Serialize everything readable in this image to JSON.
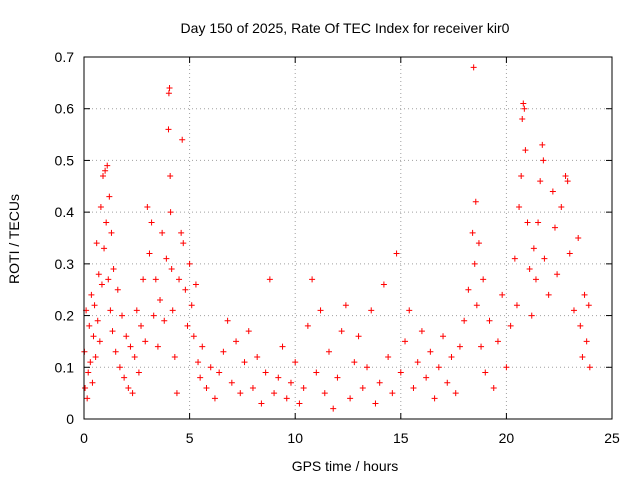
{
  "chart_data": {
    "type": "scatter",
    "title": "Day 150 of 2025, Rate Of TEC Index for receiver kir0",
    "xlabel": "GPS time / hours",
    "ylabel": "ROTI / TECUs",
    "xlim": [
      0,
      25
    ],
    "ylim": [
      0,
      0.7
    ],
    "xticks": [
      0,
      5,
      10,
      15,
      20,
      25
    ],
    "yticks": [
      0,
      0.1,
      0.2,
      0.3,
      0.4,
      0.5,
      0.6,
      0.7
    ],
    "grid": true,
    "marker": "+",
    "color": "#ff0000",
    "series": [
      {
        "name": "ROTI",
        "points": [
          [
            0.02,
            0.13
          ],
          [
            0.05,
            0.06
          ],
          [
            0.1,
            0.21
          ],
          [
            0.15,
            0.04
          ],
          [
            0.2,
            0.09
          ],
          [
            0.25,
            0.18
          ],
          [
            0.3,
            0.11
          ],
          [
            0.35,
            0.24
          ],
          [
            0.4,
            0.07
          ],
          [
            0.45,
            0.16
          ],
          [
            0.5,
            0.22
          ],
          [
            0.55,
            0.12
          ],
          [
            0.6,
            0.34
          ],
          [
            0.65,
            0.19
          ],
          [
            0.7,
            0.28
          ],
          [
            0.75,
            0.15
          ],
          [
            0.8,
            0.41
          ],
          [
            0.85,
            0.26
          ],
          [
            0.9,
            0.47
          ],
          [
            0.95,
            0.33
          ],
          [
            1.0,
            0.48
          ],
          [
            1.05,
            0.38
          ],
          [
            1.1,
            0.49
          ],
          [
            1.15,
            0.27
          ],
          [
            1.2,
            0.43
          ],
          [
            1.25,
            0.21
          ],
          [
            1.3,
            0.36
          ],
          [
            1.35,
            0.17
          ],
          [
            1.4,
            0.29
          ],
          [
            1.5,
            0.13
          ],
          [
            1.6,
            0.25
          ],
          [
            1.7,
            0.1
          ],
          [
            1.8,
            0.2
          ],
          [
            1.9,
            0.08
          ],
          [
            2.0,
            0.16
          ],
          [
            2.1,
            0.06
          ],
          [
            2.2,
            0.14
          ],
          [
            2.3,
            0.05
          ],
          [
            2.4,
            0.12
          ],
          [
            2.5,
            0.21
          ],
          [
            2.6,
            0.09
          ],
          [
            2.7,
            0.18
          ],
          [
            2.8,
            0.27
          ],
          [
            2.9,
            0.15
          ],
          [
            3.0,
            0.41
          ],
          [
            3.1,
            0.32
          ],
          [
            3.2,
            0.38
          ],
          [
            3.3,
            0.2
          ],
          [
            3.4,
            0.27
          ],
          [
            3.5,
            0.14
          ],
          [
            3.6,
            0.23
          ],
          [
            3.7,
            0.36
          ],
          [
            3.8,
            0.19
          ],
          [
            3.9,
            0.31
          ],
          [
            4.0,
            0.56
          ],
          [
            4.02,
            0.63
          ],
          [
            4.05,
            0.64
          ],
          [
            4.08,
            0.47
          ],
          [
            4.1,
            0.4
          ],
          [
            4.15,
            0.29
          ],
          [
            4.2,
            0.21
          ],
          [
            4.3,
            0.12
          ],
          [
            4.4,
            0.05
          ],
          [
            4.5,
            0.27
          ],
          [
            4.6,
            0.36
          ],
          [
            4.65,
            0.54
          ],
          [
            4.7,
            0.34
          ],
          [
            4.8,
            0.25
          ],
          [
            4.9,
            0.18
          ],
          [
            5.0,
            0.3
          ],
          [
            5.1,
            0.22
          ],
          [
            5.2,
            0.16
          ],
          [
            5.3,
            0.26
          ],
          [
            5.4,
            0.11
          ],
          [
            5.5,
            0.08
          ],
          [
            5.6,
            0.14
          ],
          [
            5.8,
            0.06
          ],
          [
            6.0,
            0.1
          ],
          [
            6.2,
            0.04
          ],
          [
            6.4,
            0.09
          ],
          [
            6.6,
            0.13
          ],
          [
            6.8,
            0.19
          ],
          [
            7.0,
            0.07
          ],
          [
            7.2,
            0.15
          ],
          [
            7.4,
            0.05
          ],
          [
            7.6,
            0.11
          ],
          [
            7.8,
            0.17
          ],
          [
            8.0,
            0.06
          ],
          [
            8.2,
            0.12
          ],
          [
            8.4,
            0.03
          ],
          [
            8.6,
            0.09
          ],
          [
            8.8,
            0.27
          ],
          [
            9.0,
            0.05
          ],
          [
            9.2,
            0.08
          ],
          [
            9.4,
            0.14
          ],
          [
            9.6,
            0.04
          ],
          [
            9.8,
            0.07
          ],
          [
            10.0,
            0.11
          ],
          [
            10.2,
            0.03
          ],
          [
            10.4,
            0.06
          ],
          [
            10.6,
            0.18
          ],
          [
            10.8,
            0.27
          ],
          [
            11.0,
            0.09
          ],
          [
            11.2,
            0.21
          ],
          [
            11.4,
            0.05
          ],
          [
            11.6,
            0.13
          ],
          [
            11.8,
            0.02
          ],
          [
            12.0,
            0.08
          ],
          [
            12.2,
            0.17
          ],
          [
            12.4,
            0.22
          ],
          [
            12.6,
            0.04
          ],
          [
            12.8,
            0.11
          ],
          [
            13.0,
            0.16
          ],
          [
            13.2,
            0.06
          ],
          [
            13.4,
            0.1
          ],
          [
            13.6,
            0.21
          ],
          [
            13.8,
            0.03
          ],
          [
            14.0,
            0.07
          ],
          [
            14.2,
            0.26
          ],
          [
            14.4,
            0.12
          ],
          [
            14.6,
            0.05
          ],
          [
            14.8,
            0.32
          ],
          [
            15.0,
            0.09
          ],
          [
            15.2,
            0.15
          ],
          [
            15.4,
            0.21
          ],
          [
            15.6,
            0.06
          ],
          [
            15.8,
            0.11
          ],
          [
            16.0,
            0.17
          ],
          [
            16.2,
            0.08
          ],
          [
            16.4,
            0.13
          ],
          [
            16.6,
            0.04
          ],
          [
            16.8,
            0.1
          ],
          [
            17.0,
            0.16
          ],
          [
            17.2,
            0.07
          ],
          [
            17.4,
            0.12
          ],
          [
            17.6,
            0.05
          ],
          [
            17.8,
            0.14
          ],
          [
            18.0,
            0.19
          ],
          [
            18.2,
            0.25
          ],
          [
            18.4,
            0.36
          ],
          [
            18.45,
            0.68
          ],
          [
            18.5,
            0.3
          ],
          [
            18.55,
            0.42
          ],
          [
            18.6,
            0.22
          ],
          [
            18.7,
            0.34
          ],
          [
            18.8,
            0.14
          ],
          [
            18.9,
            0.27
          ],
          [
            19.0,
            0.09
          ],
          [
            19.2,
            0.19
          ],
          [
            19.4,
            0.06
          ],
          [
            19.6,
            0.15
          ],
          [
            19.8,
            0.24
          ],
          [
            20.0,
            0.1
          ],
          [
            20.2,
            0.18
          ],
          [
            20.4,
            0.31
          ],
          [
            20.5,
            0.22
          ],
          [
            20.6,
            0.41
          ],
          [
            20.7,
            0.47
          ],
          [
            20.75,
            0.58
          ],
          [
            20.8,
            0.61
          ],
          [
            20.85,
            0.6
          ],
          [
            20.9,
            0.52
          ],
          [
            21.0,
            0.38
          ],
          [
            21.1,
            0.29
          ],
          [
            21.2,
            0.2
          ],
          [
            21.3,
            0.33
          ],
          [
            21.4,
            0.27
          ],
          [
            21.5,
            0.38
          ],
          [
            21.6,
            0.46
          ],
          [
            21.7,
            0.53
          ],
          [
            21.75,
            0.5
          ],
          [
            21.8,
            0.31
          ],
          [
            22.0,
            0.24
          ],
          [
            22.2,
            0.44
          ],
          [
            22.3,
            0.37
          ],
          [
            22.4,
            0.28
          ],
          [
            22.6,
            0.41
          ],
          [
            22.8,
            0.47
          ],
          [
            22.9,
            0.46
          ],
          [
            23.0,
            0.32
          ],
          [
            23.2,
            0.21
          ],
          [
            23.4,
            0.35
          ],
          [
            23.5,
            0.18
          ],
          [
            23.6,
            0.12
          ],
          [
            23.7,
            0.24
          ],
          [
            23.8,
            0.15
          ],
          [
            23.9,
            0.22
          ],
          [
            23.95,
            0.1
          ]
        ]
      }
    ]
  }
}
